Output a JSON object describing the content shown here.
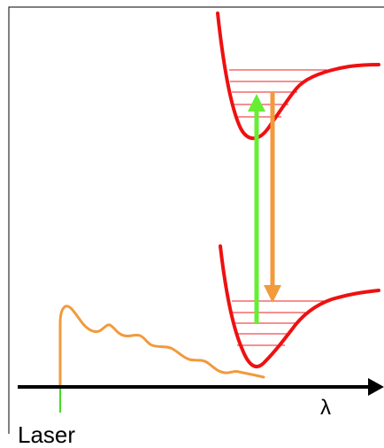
{
  "labels": {
    "axis_symbol": "λ",
    "laser": "Laser"
  },
  "colors": {
    "potential_curve": "#ee1111",
    "vibrational_level": "#ee2222",
    "absorption_arrow": "#66ee33",
    "emission_arrow": "#f29a3c",
    "spectrum": "#f29a3c",
    "laser_line": "#44dd22",
    "axis": "#000000",
    "frame": "#000000"
  },
  "icons": {
    "axis_arrowhead": "right-arrow-icon"
  }
}
